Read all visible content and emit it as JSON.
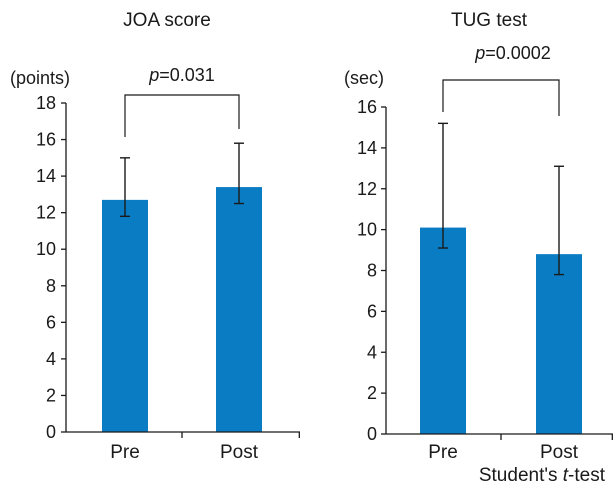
{
  "colors": {
    "bar": "#0a7cc4",
    "ink": "#1a1a1a"
  },
  "chart_data": [
    {
      "type": "bar",
      "title": "JOA score",
      "ylabel": "(points)",
      "ylim": [
        0,
        18
      ],
      "yticks": [
        0,
        2,
        4,
        6,
        8,
        10,
        12,
        14,
        16,
        18
      ],
      "categories": [
        "Pre",
        "Post"
      ],
      "values": [
        12.7,
        13.4
      ],
      "error_low": [
        11.8,
        12.5
      ],
      "error_high": [
        15.0,
        15.8
      ],
      "significance": {
        "p_label": "p",
        "p_value": "=0.031"
      }
    },
    {
      "type": "bar",
      "title": "TUG test",
      "ylabel": "(sec)",
      "ylim": [
        0,
        16
      ],
      "yticks": [
        0,
        2,
        4,
        6,
        8,
        10,
        12,
        14,
        16
      ],
      "categories": [
        "Pre",
        "Post"
      ],
      "values": [
        10.1,
        8.8
      ],
      "error_low": [
        9.1,
        7.8
      ],
      "error_high": [
        15.2,
        13.1
      ],
      "significance": {
        "p_label": "p",
        "p_value": "=0.0002"
      }
    }
  ],
  "footnote": {
    "prefix": "Student's ",
    "italic": "t",
    "suffix": "-test"
  }
}
